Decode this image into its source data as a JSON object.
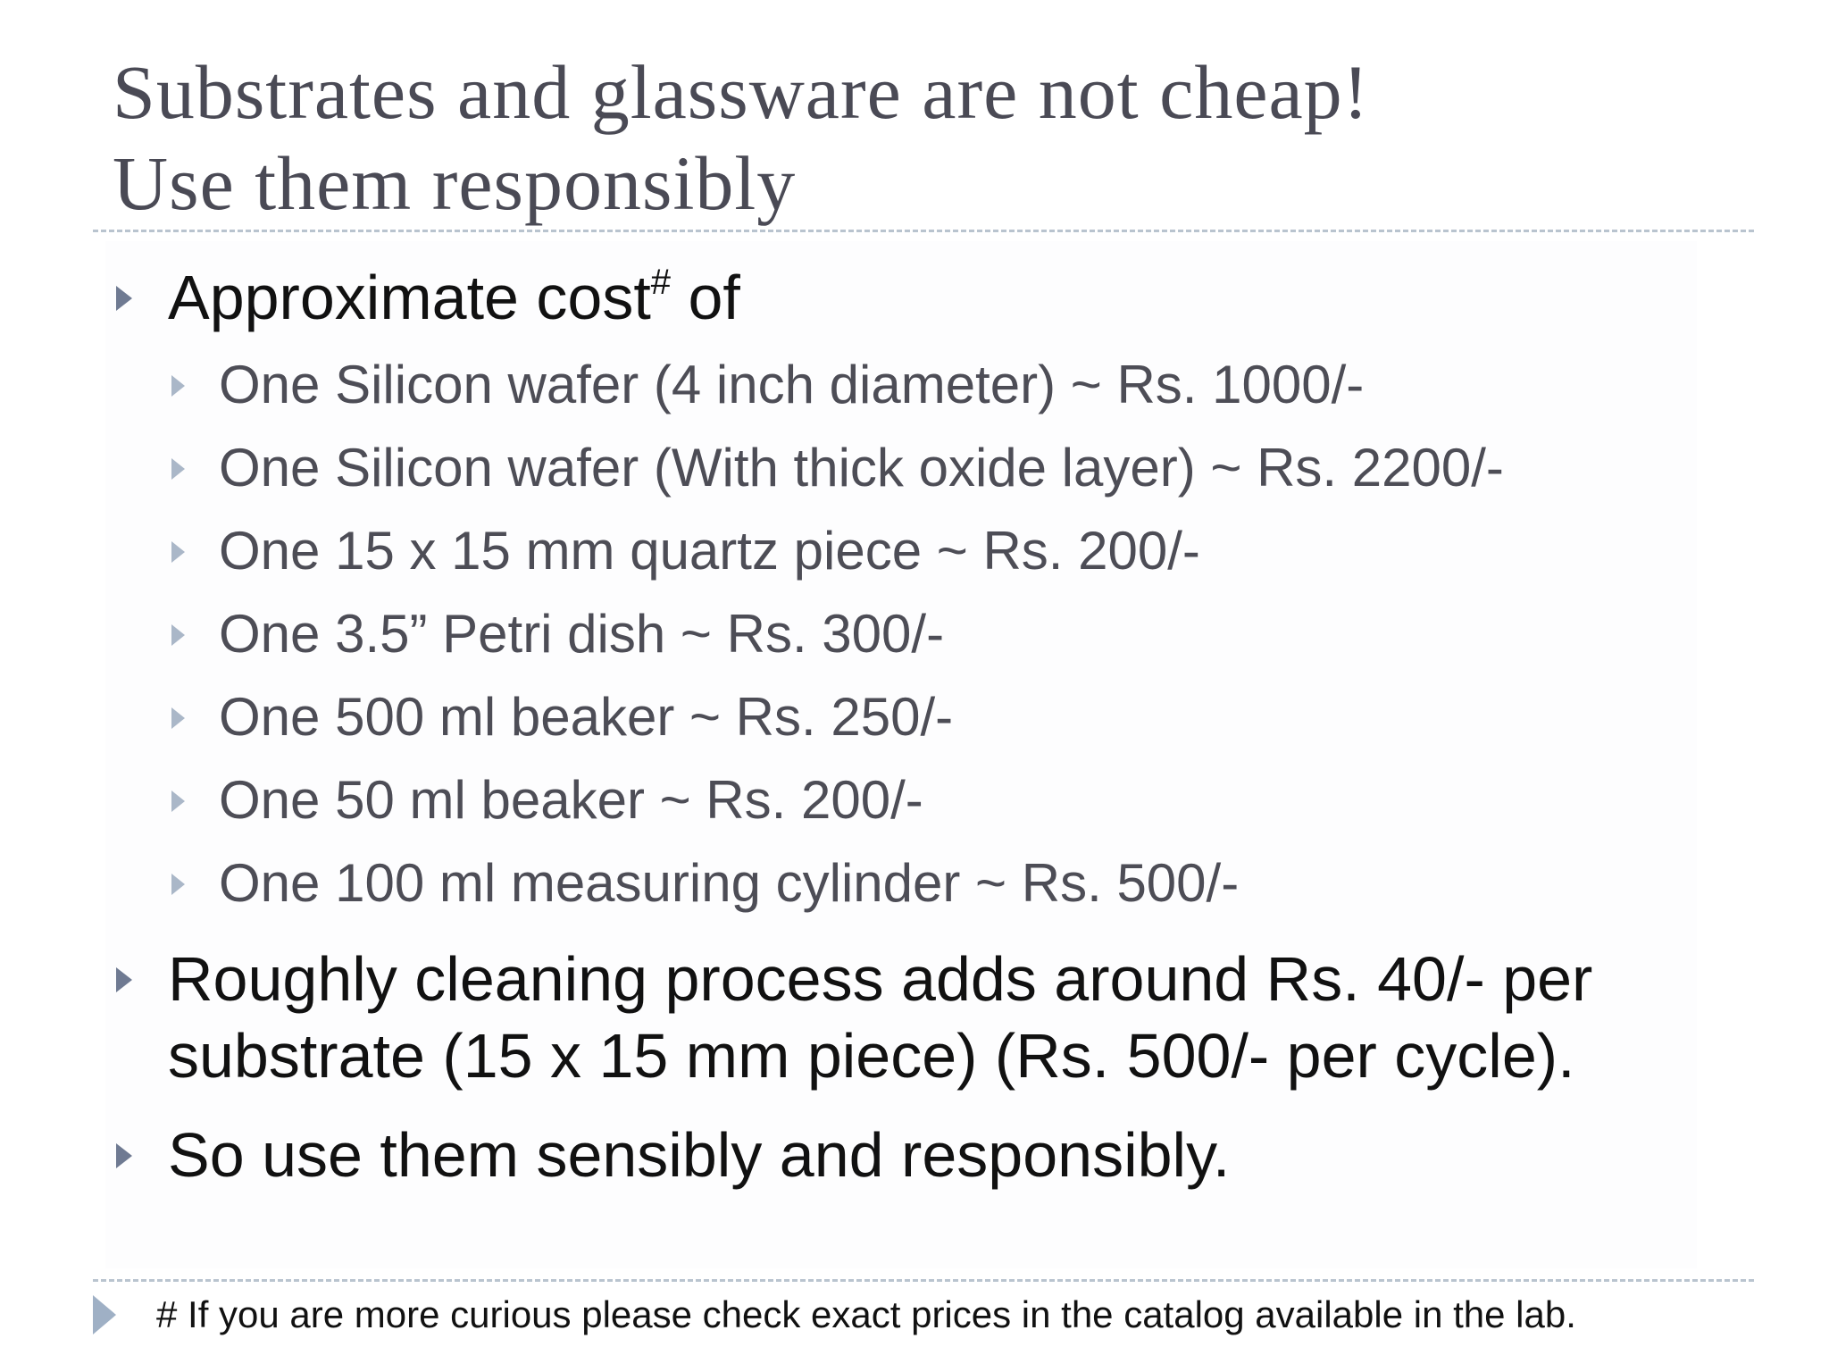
{
  "slide": {
    "title_line1": "Substrates and glassware are not cheap!",
    "title_line2": "Use them responsibly",
    "bullets": [
      {
        "text": "Approximate cost",
        "sup": "#",
        "suffix": " of",
        "subitems": [
          "One Silicon wafer (4 inch diameter) ~ Rs. 1000/-",
          "One Silicon wafer (With thick oxide layer) ~ Rs. 2200/-",
          "One 15 x 15 mm quartz piece ~ Rs. 200/-",
          "One 3.5” Petri dish ~ Rs. 300/-",
          "One 500 ml beaker ~ Rs. 250/-",
          "One 50 ml beaker ~ Rs. 200/-",
          "One 100 ml measuring cylinder ~ Rs. 500/-"
        ]
      },
      {
        "line1": "Roughly cleaning process adds around Rs. 40/- per",
        "line2": "substrate (15 x 15 mm piece) (Rs. 500/- per cycle)."
      },
      {
        "text": "So use them sensibly and responsibly."
      }
    ],
    "footnote": "# If you are more curious please check exact prices in the catalog available in the lab.",
    "colors": {
      "title": "#4a4a55",
      "bullet_marker": "#6f7a92",
      "sub_bullet_marker": "#aab7c8",
      "rule": "#b9c4cf"
    },
    "icons": {
      "bullet": "triangle-right-icon",
      "sub_bullet": "triangle-right-icon",
      "footnote_marker": "triangle-right-icon"
    }
  }
}
